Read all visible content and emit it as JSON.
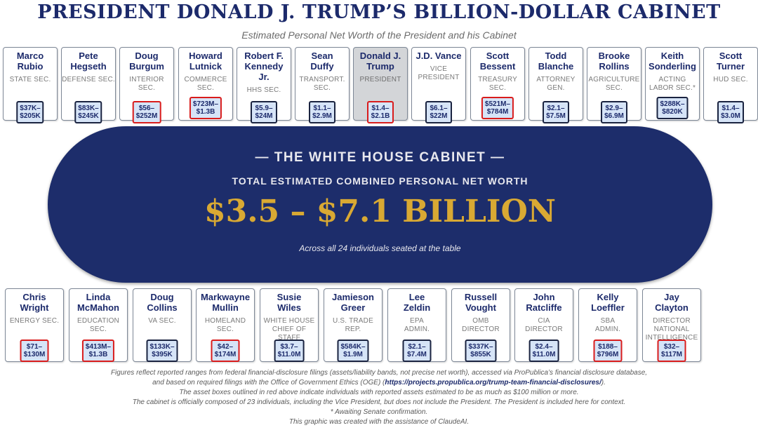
{
  "header": {
    "title": "PRESIDENT DONALD J. TRUMP’S BILLION-DOLLAR CABINET",
    "subtitle": "Estimated Personal Net Worth of the President and his Cabinet"
  },
  "center": {
    "heading": "— THE WHITE HOUSE CABINET —",
    "subheading": "TOTAL ESTIMATED COMBINED PERSONAL NET WORTH",
    "total": "$3.5 – $7.1 BILLION",
    "note": "Across all 24 individuals seated at the table"
  },
  "top_row": [
    {
      "name": "Marco\nRubio",
      "role": "STATE SEC.",
      "worth": "$37K–$205K",
      "highlight": false
    },
    {
      "name": "Pete\nHegseth",
      "role": "DEFENSE SEC.",
      "worth": "$83K–$245K",
      "highlight": false
    },
    {
      "name": "Doug\nBurgum",
      "role": "INTERIOR SEC.",
      "worth": "$56–$252M",
      "highlight": true
    },
    {
      "name": "Howard\nLutnick",
      "role": "COMMERCE\nSEC.",
      "worth": "$723M–\n$1.3B",
      "highlight": true
    },
    {
      "name": "Robert F.\nKennedy\nJr.",
      "role": "HHS SEC.",
      "worth": "$5.9–$24M",
      "highlight": false
    },
    {
      "name": "Sean\nDuffy",
      "role": "TRANSPORT.\nSEC.",
      "worth": "$1.1–$2.9M",
      "highlight": false
    },
    {
      "name": "Donald J.\nTrump",
      "role": "PRESIDENT",
      "worth": "$1.4–$2.1B",
      "highlight": true,
      "president": true
    },
    {
      "name": "J.D. Vance",
      "role": "VICE\nPRESIDENT",
      "worth": "$6.1–$22M",
      "highlight": false
    },
    {
      "name": "Scott\nBessent",
      "role": "TREASURY\nSEC.",
      "worth": "$521M–\n$784M",
      "highlight": true
    },
    {
      "name": "Todd\nBlanche",
      "role": "ATTORNEY\nGEN.",
      "worth": "$2.1–$7.5M",
      "highlight": false
    },
    {
      "name": "Brooke\nRollins",
      "role": "AGRICULTURE\nSEC.",
      "worth": "$2.9–$6.9M",
      "highlight": false
    },
    {
      "name": "Keith\nSonderling",
      "role": "ACTING\nLABOR SEC.*",
      "worth": "$288K–\n$820K",
      "highlight": false
    },
    {
      "name": "Scott\nTurner",
      "role": "HUD SEC.",
      "worth": "$1.4–$3.0M",
      "highlight": false
    }
  ],
  "bottom_row": [
    {
      "name": "Chris\nWright",
      "role": "ENERGY SEC.",
      "worth": "$71–$130M",
      "highlight": true
    },
    {
      "name": "Linda\nMcMahon",
      "role": "EDUCATION\nSEC.",
      "worth": "$413M–$1.3B",
      "highlight": true
    },
    {
      "name": "Doug\nCollins",
      "role": "VA SEC.",
      "worth": "$133K–$395K",
      "highlight": false
    },
    {
      "name": "Markwayne\nMullin",
      "role": "HOMELAND\nSEC.",
      "worth": "$42–$174M",
      "highlight": true
    },
    {
      "name": "Susie\nWiles",
      "role": "WHITE HOUSE\nCHIEF OF STAFF",
      "worth": "$3.7–$11.0M",
      "highlight": false
    },
    {
      "name": "Jamieson\nGreer",
      "role": "U.S. TRADE\nREP.",
      "worth": "$584K–$1.9M",
      "highlight": false
    },
    {
      "name": "Lee\nZeldin",
      "role": "EPA\nADMIN.",
      "worth": "$2.1–$7.4M",
      "highlight": false
    },
    {
      "name": "Russell\nVought",
      "role": "OMB\nDIRECTOR",
      "worth": "$337K–$855K",
      "highlight": false
    },
    {
      "name": "John\nRatcliffe",
      "role": "CIA\nDIRECTOR",
      "worth": "$2.4–$11.0M",
      "highlight": false
    },
    {
      "name": "Kelly\nLoeffler",
      "role": "SBA\nADMIN.",
      "worth": "$188–$796M",
      "highlight": true
    },
    {
      "name": "Jay\nClayton",
      "role": "DIRECTOR\nNATIONAL\nINTELLIGENCE",
      "worth": "$32–$117M",
      "highlight": true
    }
  ],
  "footer": {
    "line1": "Figures reflect reported ranges from federal financial-disclosure filings (assets/liability bands, not precise net worth), accessed via ProPublica’s financial disclosure database,",
    "line2_pre": "and based on required filings with the Office of Government Ethics (OGE) (",
    "line2_link": "https://projects.propublica.org/trump-team-financial-disclosures/",
    "line2_post": ").",
    "line3": "The asset boxes outlined in red above indicate individuals with reported assets estimated to be as much as $100 million or more.",
    "line4": "The cabinet is officially composed of 23 individuals, including the Vice President, but does not include the President. The President is included here for context.",
    "line5": "* Awaiting Senate confirmation.",
    "line6": "This graphic was created with the assistance of ClaudeAI."
  },
  "colors": {
    "navy": "#1d2d6b",
    "gold": "#d9a933",
    "highlight_red": "#d91c1c",
    "worth_fill": "#d6e4f7"
  }
}
